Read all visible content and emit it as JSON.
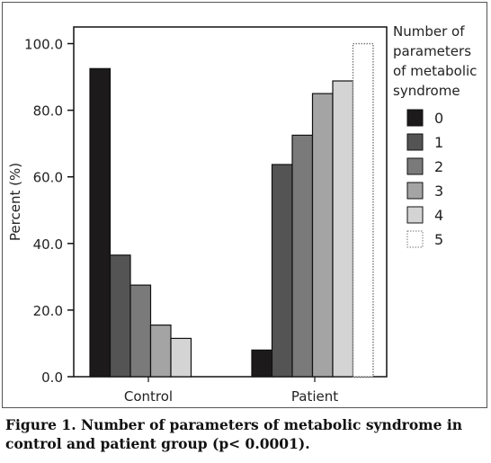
{
  "chart_data": {
    "type": "bar",
    "categories": [
      "Control",
      "Patient"
    ],
    "ylabel": "Percent (%)",
    "xlabel": "",
    "ylim": [
      0,
      105
    ],
    "yticks": [
      0,
      20,
      40,
      60,
      80,
      100
    ],
    "ytick_labels": [
      "0.0",
      "20.0",
      "40.0",
      "60.0",
      "80.0",
      "100.0"
    ],
    "legend_title": "Number of parameters of metabolic syndrome",
    "legend_title_lines": [
      "Number of",
      "parameters",
      "of metabolic",
      "syndrome"
    ],
    "legend_placement": "right",
    "grid": false,
    "series": [
      {
        "name": "0",
        "color": "#1c1a1b",
        "values": [
          92.5,
          8.0
        ]
      },
      {
        "name": "1",
        "color": "#545454",
        "values": [
          36.5,
          63.7
        ]
      },
      {
        "name": "2",
        "color": "#7a7a7a",
        "values": [
          27.5,
          72.5
        ]
      },
      {
        "name": "3",
        "color": "#a4a4a4",
        "values": [
          15.5,
          85.0
        ]
      },
      {
        "name": "4",
        "color": "#d4d4d4",
        "values": [
          11.5,
          88.8
        ]
      },
      {
        "name": "5",
        "color": "#ffffff",
        "dotted": true,
        "values": [
          null,
          100.0
        ]
      }
    ]
  },
  "caption": "Figure 1. Number of parameters of metabolic syndrome in control and patient group (p< 0.0001)."
}
